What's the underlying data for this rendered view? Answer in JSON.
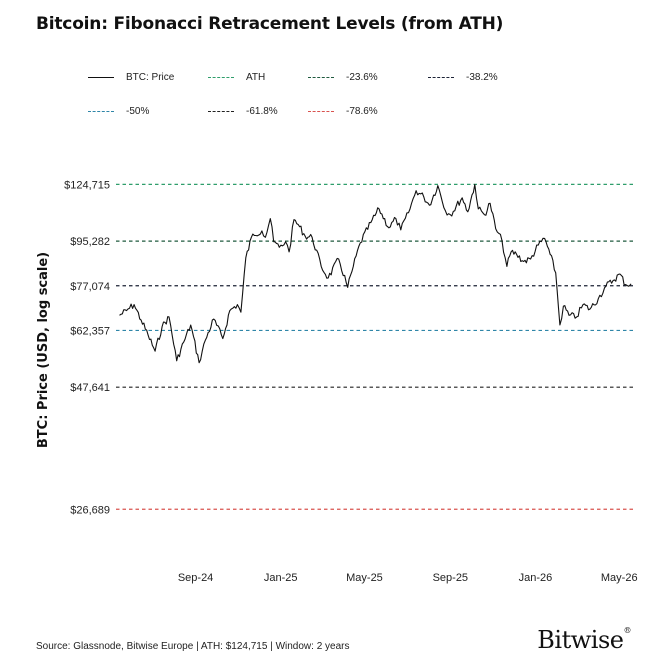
{
  "title": "Bitcoin: Fibonacci Retracement Levels (from ATH)",
  "footer": "Source: Glassnode, Bitwise Europe | ATH: $124,715 | Window: 2 years",
  "brand": {
    "name": "Bitwise",
    "mark": "®"
  },
  "chart_data": {
    "type": "line",
    "title": "Bitcoin: Fibonacci Retracement Levels (from ATH)",
    "ylabel": "BTC: Price (USD, log scale)",
    "xlabel": "",
    "yscale": "log",
    "ylim": [
      22000,
      140000
    ],
    "xlim": [
      "2024-05-10",
      "2026-05-25"
    ],
    "grid": false,
    "legend_position": "top",
    "legend": [
      {
        "label": "BTC: Price",
        "color": "#111111",
        "style": "solid"
      },
      {
        "label": "ATH",
        "color": "#2f9e6b",
        "style": "dashed"
      },
      {
        "label": "-23.6%",
        "color": "#1f5a3e",
        "style": "dashed"
      },
      {
        "label": "-38.2%",
        "color": "#1c2336",
        "style": "dashed"
      },
      {
        "label": "-50%",
        "color": "#2f86a8",
        "style": "dashed"
      },
      {
        "label": "-61.8%",
        "color": "#222222",
        "style": "dashed"
      },
      {
        "label": "-78.6%",
        "color": "#d9534f",
        "style": "dashed"
      }
    ],
    "levels": [
      {
        "name": "ATH",
        "value": 124715,
        "label": "$124,715",
        "color": "#2f9e6b"
      },
      {
        "name": "-23.6%",
        "value": 95282,
        "label": "$95,282",
        "color": "#1f5a3e"
      },
      {
        "name": "-38.2%",
        "value": 77074,
        "label": "$77,074",
        "color": "#1c2336"
      },
      {
        "name": "-50%",
        "value": 62357,
        "label": "$62,357",
        "color": "#2f86a8"
      },
      {
        "name": "-61.8%",
        "value": 47641,
        "label": "$47,641",
        "color": "#222222"
      },
      {
        "name": "-78.6%",
        "value": 26689,
        "label": "$26,689",
        "color": "#d9534f"
      }
    ],
    "x_ticks": [
      {
        "date": "2024-09-01",
        "label": "Sep-24"
      },
      {
        "date": "2025-01-01",
        "label": "Jan-25"
      },
      {
        "date": "2025-05-01",
        "label": "May-25"
      },
      {
        "date": "2025-09-01",
        "label": "Sep-25"
      },
      {
        "date": "2026-01-01",
        "label": "Jan-26"
      },
      {
        "date": "2026-05-01",
        "label": "May-26"
      }
    ],
    "series": [
      {
        "name": "BTC: Price",
        "color": "#111111",
        "points": [
          [
            "2024-05-15",
            67000
          ],
          [
            "2024-05-25",
            68500
          ],
          [
            "2024-06-05",
            70500
          ],
          [
            "2024-06-15",
            65500
          ],
          [
            "2024-06-25",
            61000
          ],
          [
            "2024-07-05",
            56500
          ],
          [
            "2024-07-15",
            63500
          ],
          [
            "2024-07-25",
            66500
          ],
          [
            "2024-08-05",
            54000
          ],
          [
            "2024-08-15",
            59000
          ],
          [
            "2024-08-25",
            64000
          ],
          [
            "2024-09-06",
            53500
          ],
          [
            "2024-09-15",
            59500
          ],
          [
            "2024-09-27",
            65800
          ],
          [
            "2024-10-10",
            60000
          ],
          [
            "2024-10-20",
            68500
          ],
          [
            "2024-10-31",
            70500
          ],
          [
            "2024-11-05",
            68000
          ],
          [
            "2024-11-12",
            88000
          ],
          [
            "2024-11-22",
            98500
          ],
          [
            "2024-12-05",
            100000
          ],
          [
            "2024-12-10",
            97000
          ],
          [
            "2024-12-17",
            106000
          ],
          [
            "2024-12-22",
            95000
          ],
          [
            "2024-12-30",
            92500
          ],
          [
            "2025-01-08",
            95000
          ],
          [
            "2025-01-13",
            90500
          ],
          [
            "2025-01-20",
            105500
          ],
          [
            "2025-01-28",
            102000
          ],
          [
            "2025-02-05",
            97500
          ],
          [
            "2025-02-15",
            97000
          ],
          [
            "2025-02-28",
            84500
          ],
          [
            "2025-03-10",
            80000
          ],
          [
            "2025-03-25",
            87500
          ],
          [
            "2025-04-07",
            76500
          ],
          [
            "2025-04-15",
            84500
          ],
          [
            "2025-04-25",
            94500
          ],
          [
            "2025-05-10",
            104000
          ],
          [
            "2025-05-22",
            111000
          ],
          [
            "2025-06-05",
            101500
          ],
          [
            "2025-06-15",
            106000
          ],
          [
            "2025-06-22",
            100500
          ],
          [
            "2025-07-03",
            109000
          ],
          [
            "2025-07-14",
            121000
          ],
          [
            "2025-07-25",
            117500
          ],
          [
            "2025-08-02",
            113000
          ],
          [
            "2025-08-14",
            124000
          ],
          [
            "2025-08-25",
            110000
          ],
          [
            "2025-09-01",
            108000
          ],
          [
            "2025-09-18",
            117000
          ],
          [
            "2025-09-26",
            109500
          ],
          [
            "2025-10-06",
            124715
          ],
          [
            "2025-10-11",
            111000
          ],
          [
            "2025-10-20",
            108000
          ],
          [
            "2025-10-28",
            114000
          ],
          [
            "2025-11-05",
            101000
          ],
          [
            "2025-11-14",
            95500
          ],
          [
            "2025-11-21",
            84500
          ],
          [
            "2025-11-27",
            90500
          ],
          [
            "2025-12-05",
            89500
          ],
          [
            "2025-12-15",
            86500
          ],
          [
            "2025-12-25",
            87500
          ],
          [
            "2026-01-05",
            93500
          ],
          [
            "2026-01-14",
            96500
          ],
          [
            "2026-01-22",
            89500
          ],
          [
            "2026-01-30",
            82000
          ],
          [
            "2026-02-05",
            64000
          ],
          [
            "2026-02-10",
            70000
          ],
          [
            "2026-02-18",
            67000
          ],
          [
            "2026-03-01",
            66500
          ],
          [
            "2026-03-10",
            70500
          ],
          [
            "2026-03-20",
            69000
          ],
          [
            "2026-04-01",
            72500
          ],
          [
            "2026-04-12",
            77000
          ],
          [
            "2026-04-22",
            79000
          ],
          [
            "2026-05-02",
            81500
          ],
          [
            "2026-05-10",
            77500
          ],
          [
            "2026-05-18",
            77800
          ]
        ]
      }
    ]
  }
}
